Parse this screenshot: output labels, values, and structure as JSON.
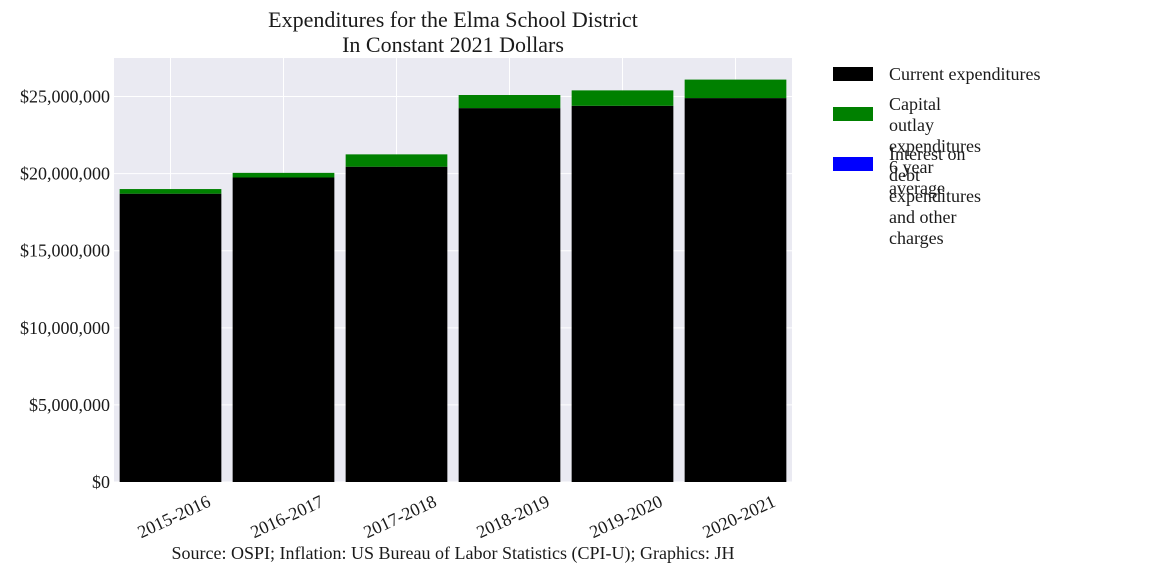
{
  "chart_data": {
    "type": "bar",
    "stacked": true,
    "title": [
      "Expenditures for the Elma School District",
      "In Constant 2021 Dollars"
    ],
    "categories": [
      "2015-2016",
      "2016-2017",
      "2017-2018",
      "2018-2019",
      "2019-2020",
      "2020-2021"
    ],
    "series": [
      {
        "name": "Current expenditures",
        "color": "#000000",
        "values": [
          18700000,
          19750000,
          20450000,
          24250000,
          24400000,
          24900000
        ]
      },
      {
        "name": "Capital outlay expenditures\n6 year average",
        "color": "#008000",
        "values": [
          300000,
          300000,
          800000,
          850000,
          1000000,
          1200000
        ]
      },
      {
        "name": "Interest on debt expenditures\nand other charges",
        "color": "#0000ff",
        "values": [
          0,
          0,
          0,
          0,
          0,
          0
        ]
      }
    ],
    "ylim": [
      0,
      27500000
    ],
    "yticks": [
      0,
      5000000,
      10000000,
      15000000,
      20000000,
      25000000
    ],
    "ytick_labels": [
      "$0",
      "$5,000,000",
      "$10,000,000",
      "$15,000,000",
      "$20,000,000",
      "$25,000,000"
    ],
    "grid": true,
    "legend": "outside-right",
    "plot_background": "#eaeaf2",
    "caption": "Source: OSPI; Inflation: US Bureau of Labor Statistics (CPI-U); Graphics: JH"
  }
}
